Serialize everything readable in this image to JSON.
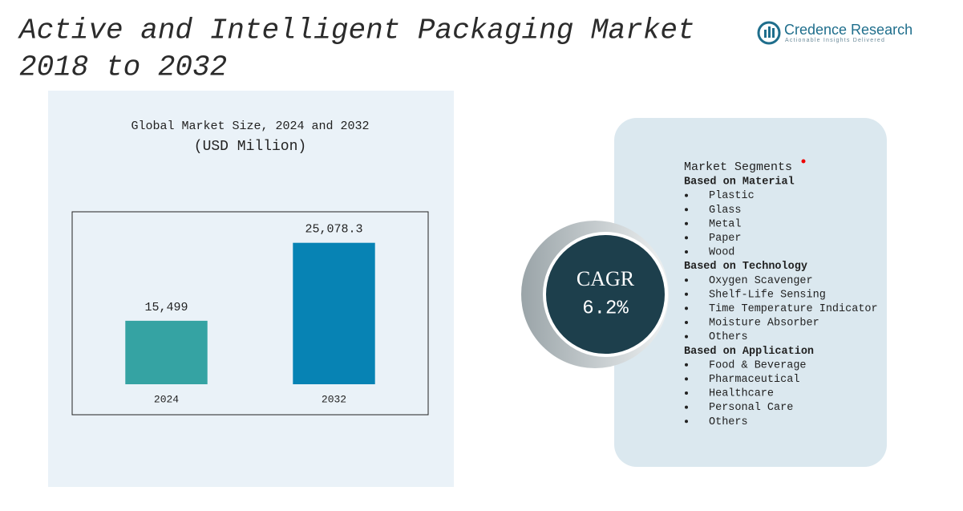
{
  "header": {
    "title_lines": [
      "Active and Intelligent Packaging Market",
      "2018 to 2032"
    ],
    "logo_name": "Credence Research",
    "logo_tagline": "Actionable Insights Delivered"
  },
  "chart_data": {
    "type": "bar",
    "title": "Global Market Size, 2024 and 2032",
    "subtitle": "(USD Million)",
    "categories": [
      "2024",
      "2032"
    ],
    "values": [
      15499,
      25078.3
    ],
    "value_labels": [
      "15,499",
      "25,078.3"
    ],
    "colors": [
      "#35a3a3",
      "#0783b4"
    ],
    "ylim": [
      7700,
      28300
    ]
  },
  "cagr": {
    "label": "CAGR",
    "value": "6.2%"
  },
  "segments": {
    "title": "Market Segments",
    "groups": [
      {
        "heading": "Based on Material",
        "items": [
          "Plastic",
          "Glass",
          "Metal",
          "Paper",
          "Wood"
        ]
      },
      {
        "heading": "Based on Technology",
        "items": [
          "Oxygen Scavenger",
          "Shelf-Life Sensing",
          "Time Temperature Indicator",
          "Moisture Absorber",
          "Others"
        ]
      },
      {
        "heading": "Based on Application",
        "items": [
          "Food & Beverage",
          "Pharmaceutical",
          "Healthcare",
          "Personal Care",
          "Others"
        ]
      }
    ]
  }
}
